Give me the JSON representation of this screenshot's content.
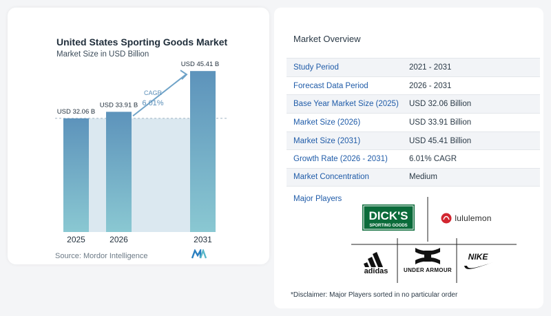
{
  "card": {
    "title": "United States Sporting Goods Market",
    "subtitle": "Market Size in USD Billion",
    "source": "Source:  Mordor Intelligence"
  },
  "chart_data": {
    "type": "bar",
    "title": "United States Sporting Goods Market",
    "subtitle": "Market Size in USD Billion",
    "categories": [
      "2025",
      "2026",
      "2031"
    ],
    "values": [
      32.06,
      33.91,
      45.41
    ],
    "data_labels": [
      "USD 32.06 B",
      "USD 33.91 B",
      "USD 45.41 B"
    ],
    "cagr_label": "CAGR",
    "cagr_value": "6.01%",
    "ylim": [
      0,
      47
    ],
    "grid": false,
    "colors": {
      "bar_top": "#5d93bb",
      "bar_bottom": "#8ac8d2",
      "band": "#dbe8f0",
      "arrow": "#6fa3c8",
      "cagr_text": "#5b8fb9"
    }
  },
  "overview": {
    "title": "Market Overview",
    "rows": [
      {
        "label": "Study Period",
        "value": "2021 - 2031"
      },
      {
        "label": "Forecast Data Period",
        "value": "2026 - 2031"
      },
      {
        "label": "Base Year Market Size (2025)",
        "value": "USD 32.06 Billion"
      },
      {
        "label": "Market Size (2026)",
        "value": "USD 33.91 Billion"
      },
      {
        "label": "Market Size (2031)",
        "value": "USD 45.41 Billion"
      },
      {
        "label": "Growth Rate (2026 - 2031)",
        "value": "6.01% CAGR"
      },
      {
        "label": "Market Concentration",
        "value": "Medium"
      }
    ]
  },
  "players": {
    "title": "Major Players",
    "logos": [
      {
        "name": "DICK'S SPORTING GOODS",
        "icon": "dicks-logo",
        "text_main": "DICK'S",
        "text_sub": "SPORTING GOODS"
      },
      {
        "name": "lululemon",
        "icon": "lululemon-logo",
        "text_main": "lululemon"
      },
      {
        "name": "adidas",
        "icon": "adidas-logo",
        "text_main": "adidas"
      },
      {
        "name": "UNDER ARMOUR",
        "icon": "under-armour-logo",
        "text_main": "UNDER ARMOUR"
      },
      {
        "name": "NIKE",
        "icon": "nike-logo",
        "text_main": "NIKE"
      }
    ]
  },
  "disclaimer": "*Disclaimer: Major Players sorted in no particular order"
}
